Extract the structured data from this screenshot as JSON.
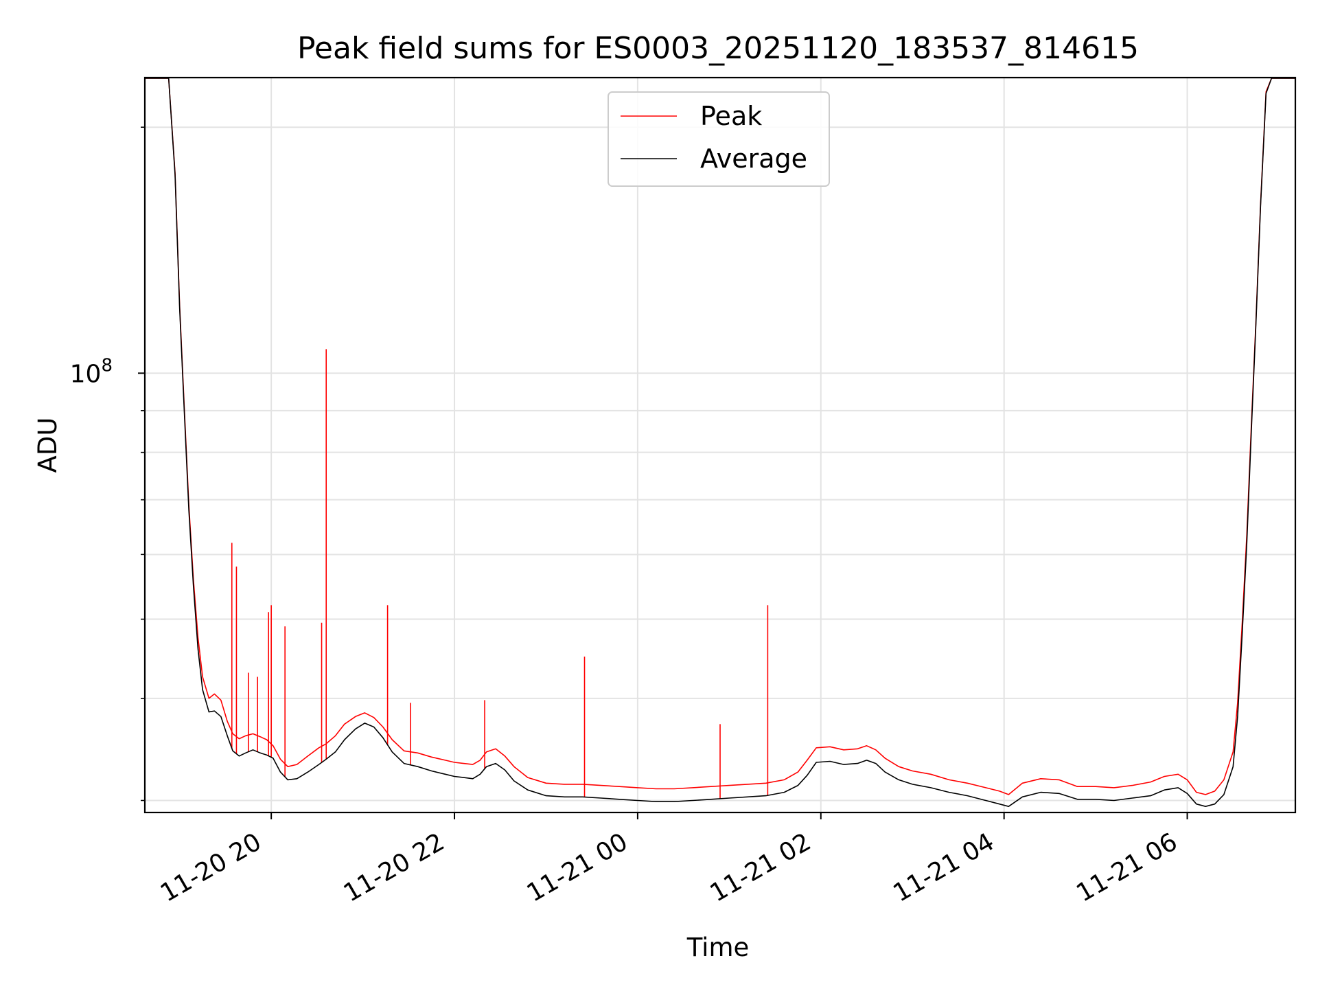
{
  "chart_data": {
    "type": "line",
    "title": "Peak field sums for ES0003_20251120_183537_814615",
    "xlabel": "Time",
    "ylabel": "ADU",
    "yscale": "log",
    "grid": true,
    "legend_position": "top-center",
    "x_unit": "hours since 11-20 00:00",
    "xlim": [
      18.62,
      31.18
    ],
    "ylim": [
      29000000,
      230000000
    ],
    "x_ticks": [
      {
        "value": 20,
        "label": "11-20 20"
      },
      {
        "value": 22,
        "label": "11-20 22"
      },
      {
        "value": 24,
        "label": "11-21 00"
      },
      {
        "value": 26,
        "label": "11-21 02"
      },
      {
        "value": 28,
        "label": "11-21 04"
      },
      {
        "value": 30,
        "label": "11-21 06"
      }
    ],
    "y_major_tick": {
      "value": 100000000,
      "label_base": "10",
      "label_exp": "8"
    },
    "y_minor_ticks": [
      30000000,
      40000000,
      50000000,
      60000000,
      70000000,
      80000000,
      90000000,
      200000000
    ],
    "series": [
      {
        "name": "Average",
        "color": "#000000",
        "x": [
          18.62,
          18.88,
          18.95,
          19.0,
          19.05,
          19.1,
          19.15,
          19.2,
          19.25,
          19.32,
          19.38,
          19.45,
          19.52,
          19.58,
          19.65,
          19.72,
          19.8,
          19.88,
          19.95,
          20.02,
          20.1,
          20.18,
          20.28,
          20.4,
          20.52,
          20.6,
          20.7,
          20.8,
          20.92,
          21.02,
          21.12,
          21.22,
          21.32,
          21.45,
          21.6,
          21.75,
          21.9,
          22.0,
          22.1,
          22.2,
          22.28,
          22.35,
          22.45,
          22.55,
          22.65,
          22.8,
          23.0,
          23.2,
          23.4,
          23.6,
          23.8,
          24.0,
          24.2,
          24.4,
          24.6,
          24.8,
          25.0,
          25.2,
          25.4,
          25.6,
          25.75,
          25.85,
          25.95,
          26.1,
          26.25,
          26.4,
          26.5,
          26.6,
          26.7,
          26.85,
          27.0,
          27.2,
          27.4,
          27.6,
          27.8,
          27.95,
          28.05,
          28.2,
          28.4,
          28.6,
          28.8,
          29.0,
          29.2,
          29.4,
          29.6,
          29.75,
          29.9,
          30.0,
          30.1,
          30.2,
          30.3,
          30.4,
          30.5,
          30.55,
          30.6,
          30.65,
          30.7,
          30.75,
          30.8,
          30.86,
          30.92,
          31.18
        ],
        "y": [
          230000000,
          230000000,
          175000000,
          120000000,
          90000000,
          68000000,
          55000000,
          46000000,
          41000000,
          38500000,
          38600000,
          38000000,
          36000000,
          34500000,
          34000000,
          34300000,
          34600000,
          34300000,
          34100000,
          33800000,
          32500000,
          31800000,
          31900000,
          32500000,
          33200000,
          33700000,
          34400000,
          35600000,
          36700000,
          37300000,
          36900000,
          35800000,
          34400000,
          33300000,
          33000000,
          32600000,
          32300000,
          32100000,
          32000000,
          31900000,
          32300000,
          33000000,
          33300000,
          32700000,
          31700000,
          30900000,
          30400000,
          30300000,
          30300000,
          30200000,
          30100000,
          30000000,
          29900000,
          29900000,
          30000000,
          30100000,
          30200000,
          30300000,
          30400000,
          30700000,
          31300000,
          32200000,
          33400000,
          33500000,
          33200000,
          33300000,
          33600000,
          33300000,
          32500000,
          31800000,
          31400000,
          31100000,
          30700000,
          30400000,
          30000000,
          29700000,
          29500000,
          30300000,
          30700000,
          30600000,
          30100000,
          30100000,
          30000000,
          30200000,
          30400000,
          30900000,
          31100000,
          30600000,
          29700000,
          29500000,
          29700000,
          30500000,
          33000000,
          38000000,
          48000000,
          62000000,
          85000000,
          115000000,
          160000000,
          220000000,
          230000000,
          230000000
        ]
      },
      {
        "name": "Peak",
        "color": "#ff0000",
        "x": [
          18.62,
          18.88,
          18.95,
          19.0,
          19.05,
          19.1,
          19.15,
          19.2,
          19.25,
          19.32,
          19.38,
          19.45,
          19.52,
          19.58,
          19.65,
          19.72,
          19.8,
          19.88,
          19.95,
          20.02,
          20.1,
          20.18,
          20.28,
          20.4,
          20.52,
          20.6,
          20.7,
          20.8,
          20.92,
          21.02,
          21.12,
          21.22,
          21.32,
          21.45,
          21.6,
          21.75,
          21.9,
          22.0,
          22.1,
          22.2,
          22.28,
          22.35,
          22.45,
          22.55,
          22.65,
          22.8,
          23.0,
          23.2,
          23.4,
          23.6,
          23.8,
          24.0,
          24.2,
          24.4,
          24.6,
          24.8,
          25.0,
          25.2,
          25.4,
          25.6,
          25.75,
          25.85,
          25.95,
          26.1,
          26.25,
          26.4,
          26.5,
          26.6,
          26.7,
          26.85,
          27.0,
          27.2,
          27.4,
          27.6,
          27.8,
          27.95,
          28.05,
          28.2,
          28.4,
          28.6,
          28.8,
          29.0,
          29.2,
          29.4,
          29.6,
          29.75,
          29.9,
          30.0,
          30.1,
          30.2,
          30.3,
          30.4,
          30.5,
          30.55,
          30.6,
          30.65,
          30.7,
          30.75,
          30.8,
          30.86,
          30.92,
          31.18
        ],
        "y": [
          230000000,
          230000000,
          176000000,
          121000000,
          91000000,
          69000000,
          56000000,
          47500000,
          42500000,
          40000000,
          40500000,
          39800000,
          37500000,
          36200000,
          35700000,
          36000000,
          36200000,
          35900000,
          35600000,
          35000000,
          33700000,
          33000000,
          33200000,
          34000000,
          34800000,
          35200000,
          36000000,
          37200000,
          38000000,
          38400000,
          37900000,
          36900000,
          35600000,
          34500000,
          34300000,
          33900000,
          33600000,
          33400000,
          33300000,
          33200000,
          33600000,
          34400000,
          34700000,
          34000000,
          33000000,
          32000000,
          31500000,
          31400000,
          31400000,
          31300000,
          31200000,
          31100000,
          31000000,
          31000000,
          31100000,
          31200000,
          31300000,
          31400000,
          31500000,
          31800000,
          32500000,
          33600000,
          34800000,
          34900000,
          34600000,
          34700000,
          35000000,
          34600000,
          33800000,
          33000000,
          32600000,
          32300000,
          31800000,
          31500000,
          31100000,
          30800000,
          30500000,
          31500000,
          31900000,
          31800000,
          31200000,
          31200000,
          31100000,
          31300000,
          31600000,
          32100000,
          32300000,
          31800000,
          30700000,
          30500000,
          30800000,
          31800000,
          34400000,
          39500000,
          49500000,
          63500000,
          86500000,
          116000000,
          161000000,
          221000000,
          230000000,
          230000000
        ],
        "spikes": [
          {
            "x": 19.57,
            "y": 62000000
          },
          {
            "x": 19.62,
            "y": 58000000
          },
          {
            "x": 19.75,
            "y": 43000000
          },
          {
            "x": 19.85,
            "y": 42500000
          },
          {
            "x": 19.97,
            "y": 51000000
          },
          {
            "x": 20.0,
            "y": 52000000
          },
          {
            "x": 20.15,
            "y": 49000000
          },
          {
            "x": 20.55,
            "y": 49500000
          },
          {
            "x": 20.6,
            "y": 107000000
          },
          {
            "x": 21.27,
            "y": 52000000
          },
          {
            "x": 21.52,
            "y": 39500000
          },
          {
            "x": 22.33,
            "y": 39800000
          },
          {
            "x": 23.42,
            "y": 45000000
          },
          {
            "x": 24.9,
            "y": 37200000
          },
          {
            "x": 25.42,
            "y": 52000000
          }
        ]
      }
    ]
  }
}
